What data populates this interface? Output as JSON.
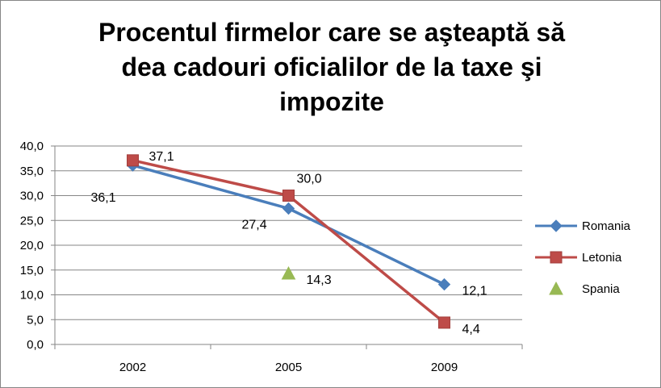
{
  "chart_data": {
    "type": "line",
    "title_lines": [
      "Procentul firmelor care se aşteaptă să",
      "dea cadouri oficialilor de la taxe şi",
      "impozite"
    ],
    "categories": [
      "2002",
      "2005",
      "2009"
    ],
    "ylim": [
      0,
      40
    ],
    "ytick_step": 5,
    "ytick_labels": [
      "0,0",
      "5,0",
      "10,0",
      "15,0",
      "20,0",
      "25,0",
      "30,0",
      "35,0",
      "40,0"
    ],
    "grid": true,
    "legend_position": "right",
    "series": [
      {
        "name": "Romania",
        "color": "#4a7ebb",
        "marker": "diamond",
        "values": [
          36.1,
          27.4,
          12.1
        ],
        "labels": [
          "36,1",
          "27,4",
          "12,1"
        ]
      },
      {
        "name": "Letonia",
        "color": "#be4b48",
        "marker": "square",
        "values": [
          37.1,
          30.0,
          4.4
        ],
        "labels": [
          "37,1",
          "30,0",
          "4,4"
        ]
      },
      {
        "name": "Spania",
        "color": "#98b954",
        "marker": "triangle",
        "values": [
          null,
          14.3,
          null
        ],
        "labels": [
          "",
          "14,3",
          ""
        ]
      }
    ]
  }
}
